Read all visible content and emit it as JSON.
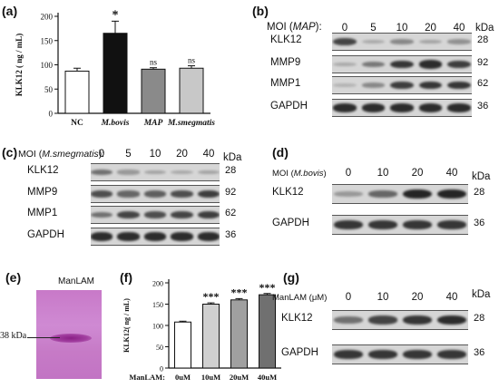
{
  "panels": {
    "a": {
      "label": "(a)",
      "chart_data": {
        "type": "bar",
        "ylabel": "KLK12 ( ng / mL)",
        "ylim": [
          0,
          200
        ],
        "yticks": [
          "0",
          "50",
          "100",
          "150",
          "200"
        ],
        "categories": [
          "NC",
          "M.bovis",
          "MAP",
          "M.smegmatis"
        ],
        "values": [
          87,
          165,
          91,
          93
        ],
        "errors": [
          6,
          25,
          3,
          5
        ],
        "annotations": [
          "",
          "*",
          "ns",
          "ns"
        ],
        "colors": [
          "#ffffff",
          "#111111",
          "#8a8a8a",
          "#c8c8c8"
        ]
      }
    },
    "b": {
      "label": "(b)",
      "moi_prefix": "MOI (",
      "moi_strain": "MAP",
      "moi_suffix": "):",
      "lanes": [
        "0",
        "5",
        "10",
        "20",
        "40"
      ],
      "kda_header": "kDa",
      "rows": [
        {
          "name": "KLK12",
          "kda": "28",
          "intensity": [
            0.75,
            0.15,
            0.35,
            0.2,
            0.3
          ]
        },
        {
          "name": "MMP9",
          "kda": "92",
          "intensity": [
            0.15,
            0.45,
            0.85,
            0.9,
            0.8
          ]
        },
        {
          "name": "MMP1",
          "kda": "62",
          "intensity": [
            0.1,
            0.35,
            0.8,
            0.85,
            0.85
          ]
        },
        {
          "name": "GAPDH",
          "kda": "36",
          "intensity": [
            0.9,
            0.9,
            0.9,
            0.9,
            0.9
          ]
        }
      ]
    },
    "c": {
      "label": "(c)",
      "moi_prefix": "MOI (",
      "moi_strain": "M.smegmatis",
      "moi_suffix": "):",
      "lanes": [
        "0",
        "5",
        "10",
        "20",
        "40"
      ],
      "kda_header": "kDa",
      "rows": [
        {
          "name": "KLK12",
          "kda": "28",
          "intensity": [
            0.5,
            0.25,
            0.2,
            0.15,
            0.2
          ]
        },
        {
          "name": "MMP9",
          "kda": "92",
          "intensity": [
            0.7,
            0.55,
            0.6,
            0.7,
            0.8
          ]
        },
        {
          "name": "MMP1",
          "kda": "62",
          "intensity": [
            0.5,
            0.75,
            0.7,
            0.75,
            0.8
          ]
        },
        {
          "name": "GAPDH",
          "kda": "36",
          "intensity": [
            0.9,
            0.9,
            0.9,
            0.9,
            0.9
          ]
        }
      ]
    },
    "d": {
      "label": "(d)",
      "moi_prefix": "MOI (",
      "moi_strain": "M.bovis",
      "moi_suffix": ")",
      "lanes": [
        "0",
        "10",
        "20",
        "40"
      ],
      "kda_header": "kDa",
      "rows": [
        {
          "name": "KLK12",
          "kda": "28",
          "intensity": [
            0.25,
            0.55,
            0.95,
            0.95
          ]
        },
        {
          "name": "GAPDH",
          "kda": "36",
          "intensity": [
            0.85,
            0.85,
            0.85,
            0.85
          ]
        }
      ]
    },
    "e": {
      "label": "(e)",
      "title": "ManLAM",
      "marker": "38 kDa"
    },
    "f": {
      "label": "(f)",
      "chart_data": {
        "type": "bar",
        "ylabel": "KLK12( ng / mL)",
        "ylim": [
          0,
          200
        ],
        "yticks": [
          "0",
          "50",
          "100",
          "150",
          "200"
        ],
        "xlabel_prefix": "ManLAM:",
        "categories": [
          "0uM",
          "10uM",
          "20uM",
          "40uM"
        ],
        "values": [
          108,
          150,
          160,
          172
        ],
        "errors": [
          2,
          3,
          3,
          3
        ],
        "annotations": [
          "",
          "***",
          "***",
          "***"
        ],
        "colors": [
          "#ffffff",
          "#d0d0d0",
          "#a0a0a0",
          "#707070"
        ]
      }
    },
    "g": {
      "label": "(g)",
      "header": "ManLAM (μM)",
      "lanes": [
        "0",
        "10",
        "20",
        "40"
      ],
      "kda_header": "kDa",
      "rows": [
        {
          "name": "KLK12",
          "kda": "28",
          "intensity": [
            0.5,
            0.75,
            0.85,
            0.9
          ]
        },
        {
          "name": "GAPDH",
          "kda": "36",
          "intensity": [
            0.85,
            0.85,
            0.85,
            0.85
          ]
        }
      ]
    }
  }
}
